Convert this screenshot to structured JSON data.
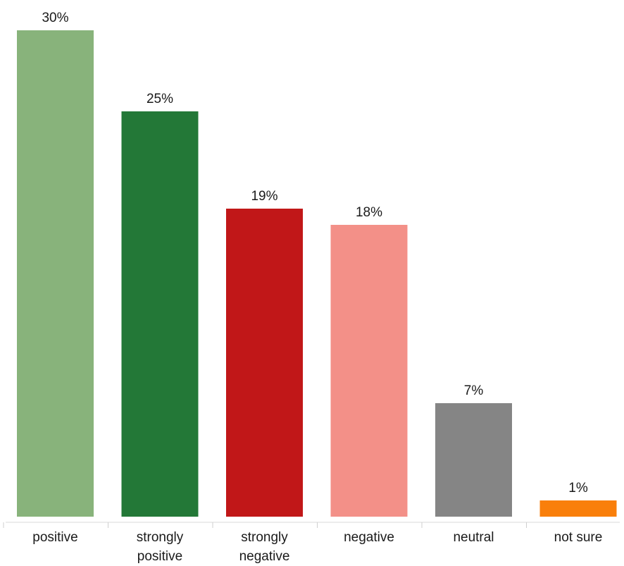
{
  "chart_data": {
    "type": "bar",
    "title": "",
    "xlabel": "",
    "ylabel": "",
    "ylim": [
      0,
      30
    ],
    "grid": false,
    "value_suffix": "%",
    "categories": [
      [
        "positive"
      ],
      [
        "strongly",
        "positive"
      ],
      [
        "strongly",
        "negative"
      ],
      [
        "negative"
      ],
      [
        "neutral"
      ],
      [
        "not sure"
      ]
    ],
    "values": [
      30,
      25,
      19,
      18,
      7,
      1
    ],
    "value_labels": [
      "30%",
      "25%",
      "19%",
      "18%",
      "7%",
      "1%"
    ],
    "colors": [
      "#88b37b",
      "#237837",
      "#c11718",
      "#f39088",
      "#858585",
      "#f97f0b"
    ]
  }
}
